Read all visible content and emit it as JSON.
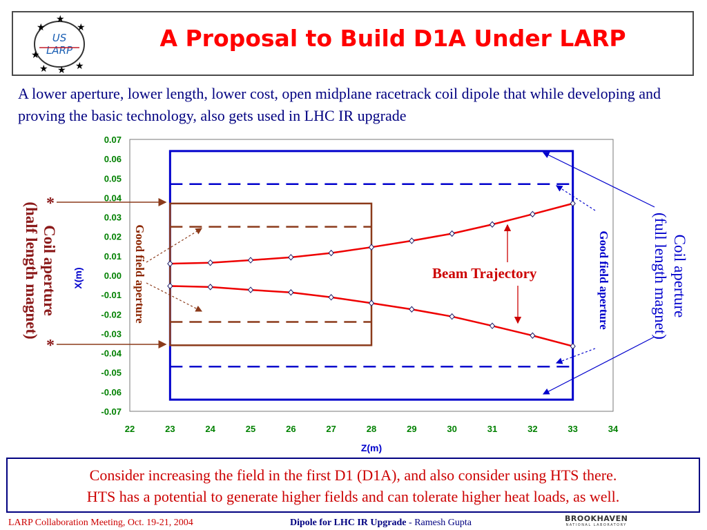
{
  "header": {
    "title": "A Proposal to Build D1A Under LARP",
    "logo_line1": "US",
    "logo_line2": "LARP"
  },
  "intro_text": "A lower aperture, lower length, lower cost, open midplane racetrack coil dipole that while developing and proving the basic technology, also gets used in LHC IR upgrade",
  "annotations": {
    "left_coil_line1": "Coil aperture",
    "left_coil_line2": "(half length magnet)",
    "star": "*",
    "left_good_field": "Good field aperture",
    "right_good_field": "Good field aperture",
    "right_coil_line1": "Coil aperture",
    "right_coil_line2": "(full length magnet)",
    "beam": "Beam Trajectory"
  },
  "chart_data": {
    "type": "line",
    "xlabel": "Z(m)",
    "ylabel": "X(m)",
    "xlim": [
      22,
      34
    ],
    "ylim": [
      -0.07,
      0.07
    ],
    "x_ticks": [
      "22",
      "23",
      "24",
      "25",
      "26",
      "27",
      "28",
      "29",
      "30",
      "31",
      "32",
      "33",
      "34"
    ],
    "y_ticks": [
      "0.07",
      "0.06",
      "0.05",
      "0.04",
      "0.03",
      "0.02",
      "0.01",
      "0.00",
      "-0.01",
      "-0.02",
      "-0.03",
      "-0.04",
      "-0.05",
      "-0.06",
      "-0.07"
    ],
    "series": [
      {
        "x": [
          23,
          24,
          25,
          26,
          27,
          28,
          29,
          30,
          31,
          32,
          33
        ],
        "values": [
          0.006,
          0.0065,
          0.0078,
          0.0093,
          0.0115,
          0.0145,
          0.0178,
          0.0215,
          0.0262,
          0.0315,
          0.037
        ]
      },
      {
        "x": [
          23,
          24,
          25,
          26,
          27,
          28,
          29,
          30,
          31,
          32,
          33
        ],
        "values": [
          -0.0055,
          -0.006,
          -0.0075,
          -0.0088,
          -0.0113,
          -0.0143,
          -0.0175,
          -0.0212,
          -0.026,
          -0.031,
          -0.0365
        ]
      }
    ],
    "shapes": {
      "full_coil_box": {
        "z": [
          23,
          33
        ],
        "x": [
          -0.064,
          0.064
        ],
        "color": "#0000cc"
      },
      "full_good_field": {
        "z": [
          23,
          33
        ],
        "x": [
          -0.047,
          0.047
        ],
        "color": "#0000cc"
      },
      "half_coil_box": {
        "z": [
          23,
          28
        ],
        "x": [
          -0.036,
          0.037
        ],
        "color": "#8b3a1a"
      },
      "half_good_field": {
        "z": [
          23,
          28
        ],
        "x": [
          -0.024,
          0.025
        ],
        "color": "#8b3a1a"
      }
    },
    "colors": {
      "trajectory": "#ee0000",
      "tick_x": "#008000",
      "tick_y": "#008000",
      "axis_label": "#0000cc"
    }
  },
  "bottom_text_line1": "Consider increasing the field in the first D1 (D1A), and also consider using HTS there.",
  "bottom_text_line2": "HTS has a potential to generate higher fields and can tolerate higher heat loads, as well.",
  "footer": {
    "left": "LARP Collaboration Meeting, Oct. 19-21, 2004",
    "mid_bold": "Dipole for LHC IR Upgrade",
    "mid_rest": " - Ramesh Gupta",
    "right": "BROOKHAVEN",
    "right_sub": "NATIONAL LABORATORY"
  }
}
